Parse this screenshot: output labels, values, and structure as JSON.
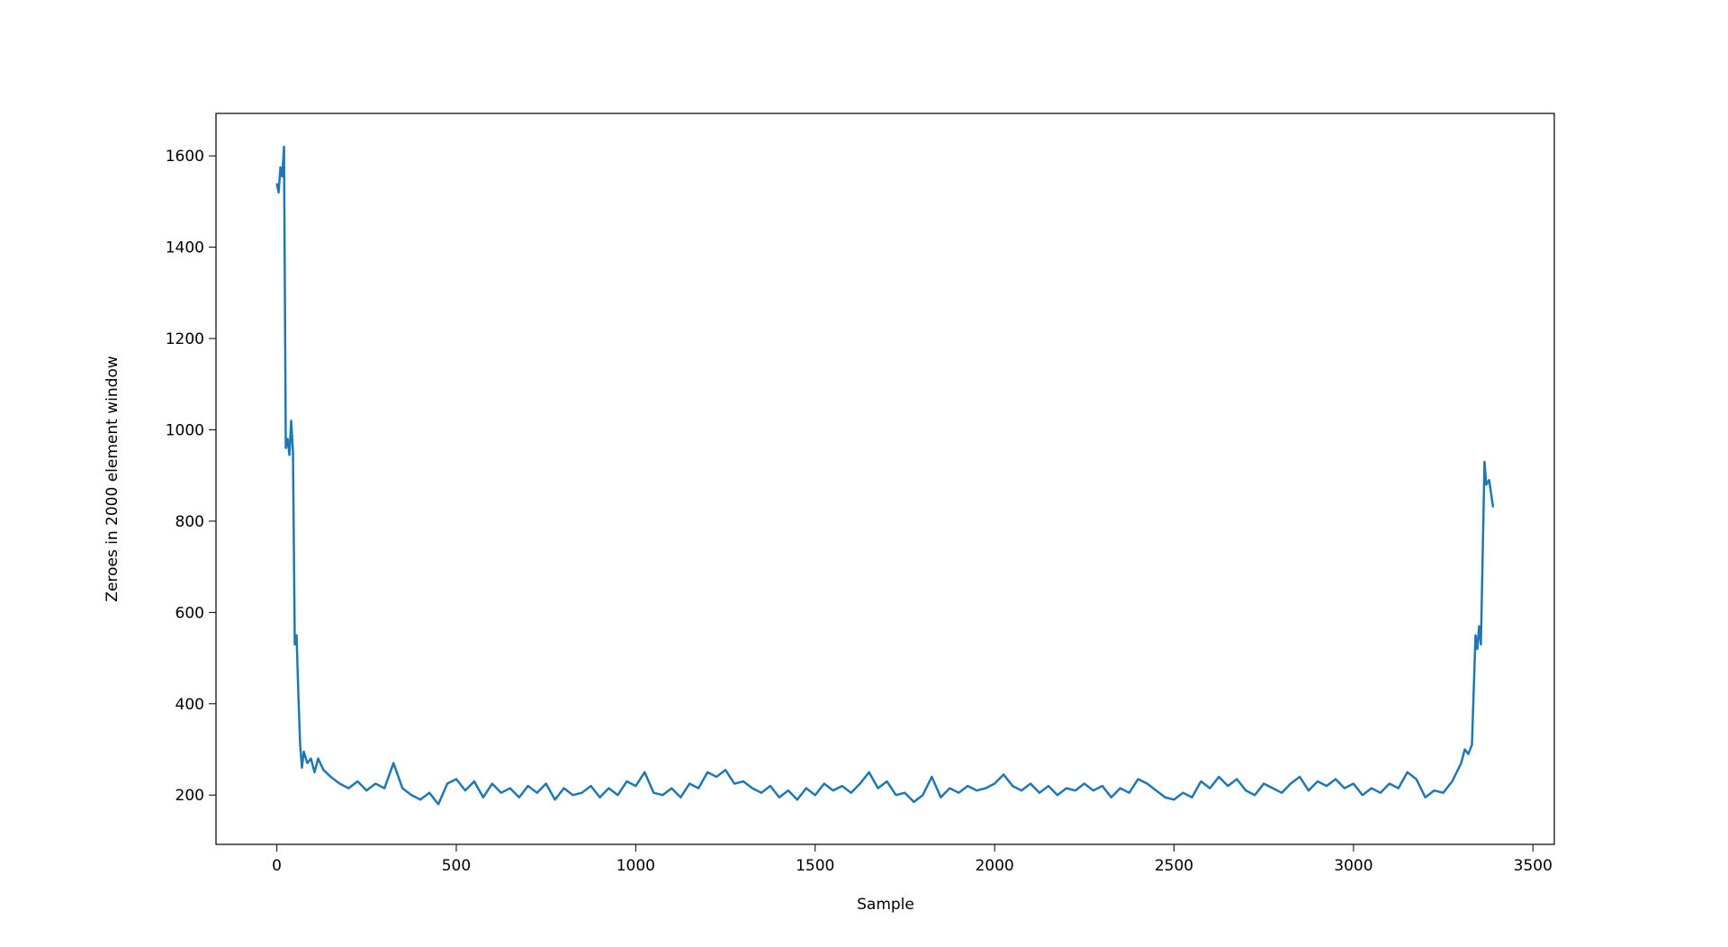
{
  "chart_data": {
    "type": "line",
    "xlabel": "Sample",
    "ylabel": "Zeroes in 2000 element window",
    "xlim": [
      -169.5,
      3559.5
    ],
    "xticks": [
      0,
      500,
      1000,
      1500,
      2000,
      2500,
      3000,
      3500
    ],
    "ylim": [
      92,
      1693
    ],
    "yticks": [
      200,
      400,
      600,
      800,
      1000,
      1200,
      1400,
      1600
    ],
    "grid": false,
    "x": [
      0,
      5,
      10,
      15,
      20,
      25,
      30,
      35,
      40,
      45,
      50,
      55,
      60,
      65,
      70,
      75,
      85,
      95,
      105,
      115,
      130,
      150,
      175,
      200,
      225,
      250,
      275,
      300,
      325,
      350,
      375,
      400,
      425,
      450,
      475,
      500,
      525,
      550,
      575,
      600,
      625,
      650,
      675,
      700,
      725,
      750,
      775,
      800,
      825,
      850,
      875,
      900,
      925,
      950,
      975,
      1000,
      1025,
      1050,
      1075,
      1100,
      1125,
      1150,
      1175,
      1200,
      1225,
      1250,
      1275,
      1300,
      1325,
      1350,
      1375,
      1400,
      1425,
      1450,
      1475,
      1500,
      1525,
      1550,
      1575,
      1600,
      1625,
      1650,
      1675,
      1700,
      1725,
      1750,
      1775,
      1800,
      1825,
      1850,
      1875,
      1900,
      1925,
      1950,
      1975,
      2000,
      2025,
      2050,
      2075,
      2100,
      2125,
      2150,
      2175,
      2200,
      2225,
      2250,
      2275,
      2300,
      2325,
      2350,
      2375,
      2400,
      2425,
      2450,
      2475,
      2500,
      2525,
      2550,
      2575,
      2600,
      2625,
      2650,
      2675,
      2700,
      2725,
      2750,
      2775,
      2800,
      2825,
      2850,
      2875,
      2900,
      2925,
      2950,
      2975,
      3000,
      3025,
      3050,
      3075,
      3100,
      3125,
      3150,
      3175,
      3200,
      3225,
      3250,
      3275,
      3300,
      3310,
      3320,
      3330,
      3340,
      3345,
      3350,
      3355,
      3365,
      3370,
      3378,
      3389
    ],
    "series": [
      {
        "color": "#1f77b4",
        "values": [
          1540,
          1520,
          1575,
          1555,
          1620,
          960,
          980,
          945,
          1020,
          950,
          530,
          550,
          420,
          310,
          260,
          295,
          270,
          280,
          250,
          280,
          255,
          240,
          225,
          215,
          230,
          210,
          225,
          215,
          270,
          215,
          200,
          190,
          205,
          180,
          225,
          235,
          210,
          230,
          195,
          225,
          205,
          215,
          195,
          220,
          205,
          225,
          190,
          215,
          200,
          205,
          220,
          195,
          215,
          200,
          230,
          220,
          250,
          205,
          200,
          215,
          195,
          225,
          215,
          250,
          240,
          255,
          225,
          230,
          215,
          205,
          220,
          195,
          210,
          190,
          215,
          200,
          225,
          210,
          220,
          205,
          225,
          250,
          215,
          230,
          200,
          205,
          185,
          200,
          240,
          195,
          215,
          205,
          220,
          210,
          215,
          225,
          245,
          220,
          210,
          225,
          205,
          220,
          200,
          215,
          210,
          225,
          210,
          220,
          195,
          215,
          205,
          235,
          225,
          210,
          195,
          190,
          205,
          195,
          230,
          215,
          240,
          220,
          235,
          210,
          200,
          225,
          215,
          205,
          225,
          240,
          210,
          230,
          220,
          235,
          215,
          225,
          200,
          215,
          205,
          225,
          215,
          250,
          235,
          195,
          210,
          205,
          230,
          270,
          300,
          290,
          310,
          550,
          520,
          570,
          530,
          930,
          880,
          890,
          830
        ]
      }
    ]
  }
}
